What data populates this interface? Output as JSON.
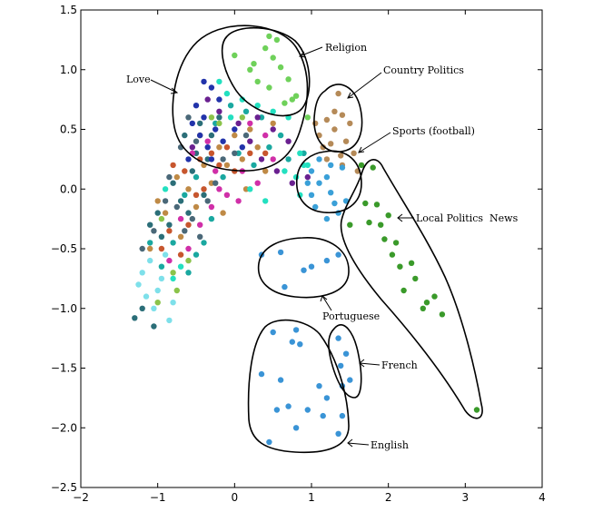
{
  "chart_data": {
    "type": "scatter",
    "title": "",
    "xlabel": "",
    "ylabel": "",
    "xlim": [
      -2,
      4
    ],
    "ylim": [
      -2.5,
      1.5
    ],
    "grid": false,
    "xticks": [
      -2,
      -1,
      0,
      1,
      2,
      3,
      4
    ],
    "xtick_labels": [
      "−2",
      "−1",
      "0",
      "1",
      "2",
      "3",
      "4"
    ],
    "yticks": [
      -2.5,
      -2.0,
      -1.5,
      -1.0,
      -0.5,
      0.0,
      0.5,
      1.0,
      1.5
    ],
    "ytick_labels": [
      "−2.5",
      "−2.0",
      "−1.5",
      "−1.0",
      "−0.5",
      "0.0",
      "0.5",
      "1.0",
      "1.5"
    ],
    "colors": {
      "religion": "#6fd15a",
      "country_politics": "#b58a58",
      "sports": "#3aa0d8",
      "local_politics": "#3a9a2a",
      "blue_lang": "#3a94d6"
    },
    "series": [
      {
        "color": "#6fd15a",
        "points": [
          [
            0.0,
            1.12
          ],
          [
            0.25,
            1.05
          ],
          [
            0.4,
            1.18
          ],
          [
            0.45,
            1.28
          ],
          [
            0.5,
            1.1
          ],
          [
            0.55,
            1.25
          ],
          [
            0.3,
            0.9
          ],
          [
            0.6,
            1.02
          ],
          [
            0.7,
            0.92
          ],
          [
            0.8,
            0.78
          ],
          [
            0.75,
            0.75
          ],
          [
            0.95,
            0.6
          ],
          [
            0.2,
            1.0
          ],
          [
            0.45,
            0.85
          ],
          [
            0.65,
            0.72
          ]
        ]
      },
      {
        "color": "#b58a58",
        "points": [
          [
            1.35,
            0.8
          ],
          [
            1.2,
            0.58
          ],
          [
            1.3,
            0.5
          ],
          [
            1.4,
            0.62
          ],
          [
            1.5,
            0.55
          ],
          [
            1.25,
            0.38
          ],
          [
            1.45,
            0.4
          ],
          [
            1.1,
            0.45
          ],
          [
            1.55,
            0.3
          ],
          [
            1.2,
            0.25
          ],
          [
            1.38,
            0.28
          ],
          [
            1.6,
            0.15
          ],
          [
            1.4,
            0.2
          ],
          [
            1.05,
            0.55
          ],
          [
            1.3,
            0.65
          ],
          [
            1.15,
            0.35
          ]
        ]
      },
      {
        "color": "#3aa0d8",
        "points": [
          [
            1.0,
            0.15
          ],
          [
            1.1,
            0.25
          ],
          [
            1.25,
            0.2
          ],
          [
            1.4,
            0.18
          ],
          [
            0.95,
            0.05
          ],
          [
            1.1,
            0.05
          ],
          [
            1.2,
            0.1
          ],
          [
            1.3,
            -0.12
          ],
          [
            1.45,
            -0.1
          ],
          [
            1.05,
            -0.15
          ],
          [
            1.2,
            -0.25
          ],
          [
            1.35,
            -0.2
          ],
          [
            1.0,
            -0.05
          ],
          [
            1.25,
            -0.03
          ]
        ]
      },
      {
        "color": "#3a9a2a",
        "points": [
          [
            1.65,
            0.2
          ],
          [
            1.8,
            0.18
          ],
          [
            1.7,
            -0.12
          ],
          [
            1.85,
            -0.13
          ],
          [
            2.0,
            -0.22
          ],
          [
            1.75,
            -0.28
          ],
          [
            1.9,
            -0.3
          ],
          [
            2.1,
            -0.45
          ],
          [
            2.05,
            -0.55
          ],
          [
            2.15,
            -0.65
          ],
          [
            2.3,
            -0.62
          ],
          [
            2.35,
            -0.75
          ],
          [
            2.2,
            -0.85
          ],
          [
            2.6,
            -0.9
          ],
          [
            2.5,
            -0.95
          ],
          [
            2.7,
            -1.05
          ],
          [
            2.45,
            -1.0
          ],
          [
            3.15,
            -1.85
          ],
          [
            1.5,
            -0.3
          ],
          [
            1.95,
            -0.42
          ]
        ]
      },
      {
        "color": "#3a94d6",
        "points": [
          [
            0.35,
            -0.55
          ],
          [
            0.6,
            -0.53
          ],
          [
            1.0,
            -0.65
          ],
          [
            0.9,
            -0.68
          ],
          [
            1.2,
            -0.6
          ],
          [
            1.35,
            -0.55
          ],
          [
            0.65,
            -0.82
          ],
          [
            0.5,
            -1.2
          ],
          [
            0.8,
            -1.18
          ],
          [
            0.75,
            -1.28
          ],
          [
            0.85,
            -1.3
          ],
          [
            1.35,
            -1.25
          ],
          [
            1.45,
            -1.38
          ],
          [
            1.38,
            -1.48
          ],
          [
            1.5,
            -1.6
          ],
          [
            1.4,
            -1.65
          ],
          [
            0.35,
            -1.55
          ],
          [
            0.6,
            -1.6
          ],
          [
            1.1,
            -1.65
          ],
          [
            0.55,
            -1.85
          ],
          [
            0.7,
            -1.82
          ],
          [
            0.95,
            -1.85
          ],
          [
            1.2,
            -1.75
          ],
          [
            0.8,
            -2.0
          ],
          [
            1.15,
            -1.9
          ],
          [
            1.4,
            -1.9
          ],
          [
            0.45,
            -2.12
          ],
          [
            1.35,
            -2.05
          ]
        ]
      },
      {
        "color": "#7ee0ea",
        "points": [
          [
            -1.2,
            -0.7
          ],
          [
            -1.15,
            -0.9
          ],
          [
            -1.05,
            -1.0
          ],
          [
            -1.0,
            -0.85
          ],
          [
            -0.85,
            -1.1
          ],
          [
            -0.95,
            -0.75
          ],
          [
            -1.1,
            -0.6
          ],
          [
            -0.9,
            -0.55
          ],
          [
            -0.8,
            -0.95
          ],
          [
            -1.25,
            -0.8
          ]
        ]
      },
      {
        "color": "#2b6e78",
        "points": [
          [
            -1.3,
            -1.08
          ],
          [
            -1.05,
            -1.15
          ],
          [
            -1.2,
            -1.0
          ],
          [
            -0.95,
            -0.4
          ],
          [
            -1.1,
            -0.3
          ],
          [
            -1.0,
            -0.2
          ],
          [
            -0.85,
            -0.3
          ],
          [
            -0.7,
            -0.1
          ],
          [
            -0.8,
            0.05
          ],
          [
            -0.6,
            -0.2
          ],
          [
            -0.55,
            0.15
          ],
          [
            -0.4,
            -0.05
          ],
          [
            -0.5,
            0.3
          ],
          [
            -0.3,
            0.45
          ],
          [
            -0.2,
            0.6
          ],
          [
            -0.35,
            0.25
          ],
          [
            -0.65,
            0.45
          ],
          [
            -0.45,
            0.55
          ]
        ]
      },
      {
        "color": "#bf8a46",
        "points": [
          [
            -1.0,
            -0.1
          ],
          [
            -1.1,
            -0.5
          ],
          [
            -0.9,
            -0.2
          ],
          [
            -0.7,
            -0.4
          ],
          [
            -0.75,
            0.1
          ],
          [
            -0.6,
            0.0
          ],
          [
            -0.5,
            -0.15
          ],
          [
            -0.4,
            0.2
          ],
          [
            -0.3,
            0.05
          ],
          [
            -0.2,
            0.35
          ],
          [
            -0.1,
            0.2
          ],
          [
            0.0,
            0.45
          ],
          [
            0.1,
            0.25
          ],
          [
            0.2,
            0.5
          ],
          [
            0.3,
            0.35
          ],
          [
            -0.45,
            0.45
          ],
          [
            0.4,
            0.15
          ],
          [
            0.5,
            0.55
          ],
          [
            0.15,
            0.0
          ],
          [
            -0.15,
            -0.2
          ]
        ]
      },
      {
        "color": "#d02fa8",
        "points": [
          [
            -0.85,
            -0.6
          ],
          [
            -0.7,
            -0.25
          ],
          [
            -0.6,
            -0.5
          ],
          [
            -0.45,
            -0.3
          ],
          [
            -0.3,
            -0.15
          ],
          [
            -0.2,
            0.0
          ],
          [
            -0.1,
            -0.05
          ],
          [
            0.1,
            0.15
          ],
          [
            0.3,
            0.05
          ],
          [
            0.5,
            0.25
          ],
          [
            -0.55,
            0.3
          ],
          [
            -0.35,
            0.4
          ],
          [
            0.2,
            0.55
          ],
          [
            0.4,
            0.45
          ],
          [
            -0.25,
            0.15
          ],
          [
            0.05,
            -0.1
          ]
        ]
      },
      {
        "color": "#1aa8a0",
        "points": [
          [
            -1.1,
            -0.45
          ],
          [
            -0.95,
            -0.65
          ],
          [
            -0.8,
            -0.45
          ],
          [
            -0.6,
            -0.7
          ],
          [
            -0.5,
            -0.55
          ],
          [
            -0.4,
            -0.45
          ],
          [
            -0.65,
            -0.05
          ],
          [
            -0.5,
            0.1
          ],
          [
            -0.3,
            -0.25
          ],
          [
            -0.15,
            0.1
          ],
          [
            0.05,
            0.3
          ],
          [
            0.25,
            0.2
          ],
          [
            0.45,
            0.35
          ],
          [
            0.7,
            0.25
          ],
          [
            0.9,
            0.3
          ],
          [
            -0.25,
            0.55
          ],
          [
            -0.05,
            0.7
          ],
          [
            0.15,
            0.65
          ],
          [
            0.35,
            0.6
          ],
          [
            0.6,
            0.45
          ]
        ]
      },
      {
        "color": "#2233aa",
        "points": [
          [
            -0.5,
            0.7
          ],
          [
            -0.4,
            0.6
          ],
          [
            -0.3,
            0.85
          ],
          [
            -0.2,
            0.75
          ],
          [
            -0.45,
            0.45
          ],
          [
            -0.35,
            0.35
          ],
          [
            -0.55,
            0.55
          ],
          [
            -0.25,
            0.5
          ],
          [
            -0.15,
            0.4
          ],
          [
            -0.6,
            0.25
          ],
          [
            0.0,
            0.5
          ],
          [
            0.1,
            0.35
          ],
          [
            -0.4,
            0.9
          ],
          [
            -0.3,
            0.25
          ]
        ]
      },
      {
        "color": "#6a2090",
        "points": [
          [
            -0.35,
            0.75
          ],
          [
            -0.2,
            0.65
          ],
          [
            0.05,
            0.55
          ],
          [
            0.2,
            0.4
          ],
          [
            0.35,
            0.25
          ],
          [
            0.55,
            0.15
          ],
          [
            0.75,
            0.05
          ],
          [
            0.95,
            0.1
          ],
          [
            -0.55,
            0.35
          ],
          [
            0.3,
            0.6
          ],
          [
            0.5,
            0.5
          ],
          [
            0.7,
            0.4
          ]
        ]
      },
      {
        "color": "#23e0c0",
        "points": [
          [
            -0.2,
            0.9
          ],
          [
            -0.1,
            0.8
          ],
          [
            0.1,
            0.75
          ],
          [
            0.3,
            0.7
          ],
          [
            0.5,
            0.65
          ],
          [
            0.7,
            0.6
          ],
          [
            0.85,
            0.3
          ],
          [
            0.95,
            0.2
          ],
          [
            0.8,
            0.1
          ],
          [
            0.65,
            0.15
          ],
          [
            -0.05,
            0.6
          ],
          [
            0.2,
            0.0
          ],
          [
            0.4,
            -0.1
          ],
          [
            0.85,
            -0.05
          ],
          [
            0.9,
            0.2
          ],
          [
            -0.9,
            0.0
          ],
          [
            -0.8,
            -0.75
          ],
          [
            -0.7,
            -0.65
          ]
        ]
      },
      {
        "color": "#c7562e",
        "points": [
          [
            -0.95,
            -0.5
          ],
          [
            -0.85,
            -0.35
          ],
          [
            -0.7,
            -0.55
          ],
          [
            -0.6,
            -0.3
          ],
          [
            -0.5,
            -0.05
          ],
          [
            -0.4,
            0.0
          ],
          [
            -0.3,
            0.3
          ],
          [
            -0.2,
            0.2
          ],
          [
            -0.1,
            0.35
          ],
          [
            0.0,
            0.15
          ],
          [
            0.2,
            0.3
          ],
          [
            0.4,
            0.3
          ],
          [
            -0.65,
            0.15
          ],
          [
            -0.45,
            0.25
          ],
          [
            -0.8,
            0.2
          ]
        ]
      },
      {
        "color": "#4a6878",
        "points": [
          [
            -1.2,
            -0.5
          ],
          [
            -1.05,
            -0.35
          ],
          [
            -0.9,
            -0.1
          ],
          [
            -0.75,
            -0.15
          ],
          [
            -0.65,
            -0.35
          ],
          [
            -0.55,
            -0.25
          ],
          [
            -0.45,
            -0.4
          ],
          [
            -0.35,
            -0.1
          ],
          [
            -0.25,
            0.05
          ],
          [
            -0.15,
            0.25
          ],
          [
            0.0,
            0.3
          ],
          [
            0.15,
            0.45
          ],
          [
            -0.6,
            0.6
          ],
          [
            -0.5,
            0.4
          ],
          [
            -0.7,
            0.35
          ],
          [
            -0.85,
            0.1
          ]
        ]
      },
      {
        "color": "#8bc34a",
        "points": [
          [
            -1.0,
            -0.95
          ],
          [
            -0.8,
            -0.7
          ],
          [
            -0.95,
            -0.25
          ],
          [
            -0.75,
            -0.85
          ],
          [
            -0.6,
            -0.6
          ],
          [
            -0.2,
            0.55
          ],
          [
            0.1,
            0.6
          ],
          [
            -0.3,
            0.6
          ]
        ]
      }
    ],
    "annotations": [
      {
        "text": "Religion"
      },
      {
        "text": "Love"
      },
      {
        "text": "Country Politics"
      },
      {
        "text": "Sports (football)"
      },
      {
        "text": "Local Politics  News"
      },
      {
        "text": "Portuguese"
      },
      {
        "text": "French"
      },
      {
        "text": "English"
      }
    ]
  }
}
